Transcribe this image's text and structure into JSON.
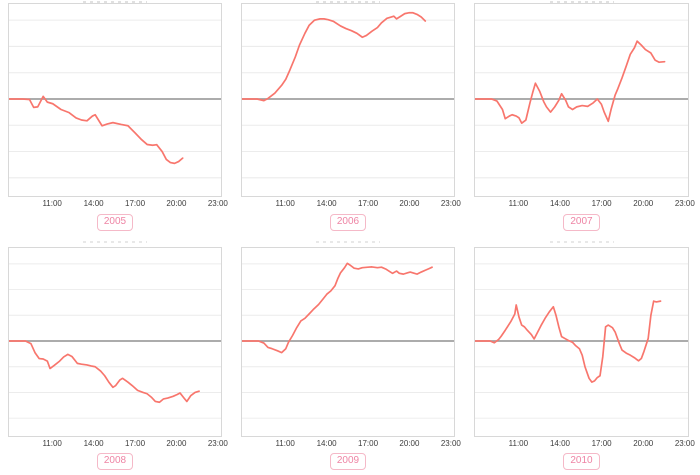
{
  "style": {
    "line_color": "#f8766d",
    "zero_line_color": "#a0a0a0",
    "grid_color": "#ececec",
    "panel_border_color": "#d8d8d8",
    "tick_text_color": "#3d3d3d",
    "badge_text_color": "#ee84a4",
    "badge_border_color": "#f5b9c8"
  },
  "axis": {
    "tick_labels": [
      "11:00",
      "14:00",
      "17:00",
      "20:00",
      "23:00"
    ],
    "tick_times": [
      11,
      14,
      17,
      20,
      23
    ],
    "t_min": 7.8,
    "t_max": 23.3
  },
  "chart_data": [
    {
      "type": "line",
      "year": "2005",
      "x_unit": "time of day",
      "x_ticks": [
        "11:00",
        "14:00",
        "17:00",
        "20:00",
        "23:00"
      ],
      "x_range": [
        7.8,
        23.3
      ],
      "ylim": [
        -3.65,
        3.7
      ],
      "y_gridline_spacing": 1,
      "zero_baseline": true,
      "grid": true,
      "legend": "none",
      "points": [
        [
          7.8,
          0
        ],
        [
          8.8,
          0
        ],
        [
          9.3,
          -0.02
        ],
        [
          9.6,
          -0.32
        ],
        [
          9.9,
          -0.3
        ],
        [
          10.3,
          0.1
        ],
        [
          10.6,
          -0.12
        ],
        [
          11,
          -0.18
        ],
        [
          11.6,
          -0.4
        ],
        [
          12.2,
          -0.52
        ],
        [
          12.7,
          -0.72
        ],
        [
          13.1,
          -0.8
        ],
        [
          13.5,
          -0.83
        ],
        [
          13.9,
          -0.65
        ],
        [
          14.1,
          -0.6
        ],
        [
          14.6,
          -1.02
        ],
        [
          15,
          -0.95
        ],
        [
          15.4,
          -0.9
        ],
        [
          16,
          -0.97
        ],
        [
          16.5,
          -1.02
        ],
        [
          17,
          -1.28
        ],
        [
          17.5,
          -1.55
        ],
        [
          17.9,
          -1.73
        ],
        [
          18.3,
          -1.76
        ],
        [
          18.6,
          -1.74
        ],
        [
          19,
          -2
        ],
        [
          19.3,
          -2.3
        ],
        [
          19.6,
          -2.42
        ],
        [
          19.9,
          -2.45
        ],
        [
          20.2,
          -2.38
        ],
        [
          20.5,
          -2.25
        ]
      ]
    },
    {
      "type": "line",
      "year": "2006",
      "x_unit": "time of day",
      "x_ticks": [
        "11:00",
        "14:00",
        "17:00",
        "20:00",
        "23:00"
      ],
      "x_range": [
        7.8,
        23.3
      ],
      "ylim": [
        -3.65,
        3.7
      ],
      "y_gridline_spacing": 1,
      "zero_baseline": true,
      "grid": true,
      "legend": "none",
      "points": [
        [
          7.8,
          0
        ],
        [
          8.9,
          0
        ],
        [
          9.4,
          -0.06
        ],
        [
          9.7,
          0.02
        ],
        [
          10.2,
          0.22
        ],
        [
          10.7,
          0.52
        ],
        [
          11,
          0.75
        ],
        [
          11.3,
          1.1
        ],
        [
          11.7,
          1.6
        ],
        [
          12,
          2.05
        ],
        [
          12.4,
          2.5
        ],
        [
          12.7,
          2.8
        ],
        [
          13.1,
          3
        ],
        [
          13.5,
          3.05
        ],
        [
          13.8,
          3.05
        ],
        [
          14.1,
          3.02
        ],
        [
          14.5,
          2.95
        ],
        [
          15,
          2.78
        ],
        [
          15.4,
          2.68
        ],
        [
          15.8,
          2.6
        ],
        [
          16.2,
          2.5
        ],
        [
          16.6,
          2.35
        ],
        [
          16.9,
          2.42
        ],
        [
          17.3,
          2.58
        ],
        [
          17.7,
          2.72
        ],
        [
          18,
          2.9
        ],
        [
          18.4,
          3.07
        ],
        [
          18.7,
          3.12
        ],
        [
          18.9,
          3.15
        ],
        [
          19.1,
          3.05
        ],
        [
          19.4,
          3.15
        ],
        [
          19.7,
          3.25
        ],
        [
          20,
          3.28
        ],
        [
          20.3,
          3.28
        ],
        [
          20.6,
          3.22
        ],
        [
          20.9,
          3.12
        ],
        [
          21.2,
          2.97
        ]
      ]
    },
    {
      "type": "line",
      "year": "2007",
      "x_unit": "time of day",
      "x_ticks": [
        "11:00",
        "14:00",
        "17:00",
        "20:00",
        "23:00"
      ],
      "x_range": [
        7.8,
        23.3
      ],
      "ylim": [
        -3.65,
        3.7
      ],
      "y_gridline_spacing": 1,
      "zero_baseline": true,
      "grid": true,
      "legend": "none",
      "points": [
        [
          7.8,
          0
        ],
        [
          9,
          0
        ],
        [
          9.4,
          -0.08
        ],
        [
          9.8,
          -0.4
        ],
        [
          10,
          -0.75
        ],
        [
          10.3,
          -0.65
        ],
        [
          10.5,
          -0.6
        ],
        [
          10.8,
          -0.65
        ],
        [
          11,
          -0.72
        ],
        [
          11.2,
          -0.92
        ],
        [
          11.5,
          -0.8
        ],
        [
          11.8,
          -0.15
        ],
        [
          12,
          0.25
        ],
        [
          12.2,
          0.6
        ],
        [
          12.5,
          0.3
        ],
        [
          12.8,
          -0.1
        ],
        [
          13,
          -0.3
        ],
        [
          13.3,
          -0.5
        ],
        [
          13.6,
          -0.3
        ],
        [
          13.9,
          -0.05
        ],
        [
          14.1,
          0.2
        ],
        [
          14.4,
          -0.05
        ],
        [
          14.6,
          -0.3
        ],
        [
          14.9,
          -0.4
        ],
        [
          15.2,
          -0.3
        ],
        [
          15.6,
          -0.25
        ],
        [
          16,
          -0.28
        ],
        [
          16.4,
          -0.15
        ],
        [
          16.7,
          0
        ],
        [
          17,
          -0.2
        ],
        [
          17.2,
          -0.5
        ],
        [
          17.5,
          -0.85
        ],
        [
          17.7,
          -0.4
        ],
        [
          18,
          0.15
        ],
        [
          18.2,
          0.4
        ],
        [
          18.5,
          0.8
        ],
        [
          18.8,
          1.25
        ],
        [
          19.1,
          1.7
        ],
        [
          19.4,
          1.95
        ],
        [
          19.6,
          2.2
        ],
        [
          19.9,
          2.05
        ],
        [
          20.2,
          1.88
        ],
        [
          20.6,
          1.75
        ],
        [
          20.9,
          1.48
        ],
        [
          21.2,
          1.4
        ],
        [
          21.6,
          1.42
        ]
      ]
    },
    {
      "type": "line",
      "year": "2008",
      "x_unit": "time of day",
      "x_ticks": [
        "11:00",
        "14:00",
        "17:00",
        "20:00",
        "23:00"
      ],
      "x_range": [
        7.8,
        23.3
      ],
      "ylim": [
        -3.65,
        3.7
      ],
      "y_gridline_spacing": 1,
      "zero_baseline": true,
      "grid": true,
      "legend": "none",
      "points": [
        [
          7.8,
          0
        ],
        [
          9,
          0
        ],
        [
          9.4,
          -0.1
        ],
        [
          9.7,
          -0.45
        ],
        [
          10,
          -0.68
        ],
        [
          10.3,
          -0.7
        ],
        [
          10.6,
          -0.78
        ],
        [
          10.8,
          -1.07
        ],
        [
          11.1,
          -0.95
        ],
        [
          11.5,
          -0.78
        ],
        [
          11.8,
          -0.62
        ],
        [
          12.1,
          -0.52
        ],
        [
          12.4,
          -0.6
        ],
        [
          12.8,
          -0.87
        ],
        [
          13.1,
          -0.9
        ],
        [
          13.5,
          -0.93
        ],
        [
          13.8,
          -0.97
        ],
        [
          14.1,
          -1
        ],
        [
          14.5,
          -1.17
        ],
        [
          14.8,
          -1.35
        ],
        [
          15.1,
          -1.6
        ],
        [
          15.4,
          -1.8
        ],
        [
          15.6,
          -1.73
        ],
        [
          15.9,
          -1.52
        ],
        [
          16.1,
          -1.45
        ],
        [
          16.5,
          -1.6
        ],
        [
          16.8,
          -1.73
        ],
        [
          17.2,
          -1.92
        ],
        [
          17.6,
          -2
        ],
        [
          17.9,
          -2.05
        ],
        [
          18.2,
          -2.18
        ],
        [
          18.5,
          -2.35
        ],
        [
          18.8,
          -2.38
        ],
        [
          19.1,
          -2.25
        ],
        [
          19.4,
          -2.22
        ],
        [
          19.8,
          -2.15
        ],
        [
          20.1,
          -2.08
        ],
        [
          20.3,
          -2.02
        ],
        [
          20.6,
          -2.22
        ],
        [
          20.8,
          -2.35
        ],
        [
          21.1,
          -2.12
        ],
        [
          21.4,
          -2
        ],
        [
          21.7,
          -1.95
        ]
      ]
    },
    {
      "type": "line",
      "year": "2009",
      "x_unit": "time of day",
      "x_ticks": [
        "11:00",
        "14:00",
        "17:00",
        "20:00",
        "23:00"
      ],
      "x_range": [
        7.8,
        23.3
      ],
      "ylim": [
        -3.65,
        3.7
      ],
      "y_gridline_spacing": 1,
      "zero_baseline": true,
      "grid": true,
      "legend": "none",
      "points": [
        [
          7.8,
          0
        ],
        [
          9,
          0
        ],
        [
          9.4,
          -0.08
        ],
        [
          9.7,
          -0.25
        ],
        [
          10,
          -0.3
        ],
        [
          10.4,
          -0.38
        ],
        [
          10.7,
          -0.45
        ],
        [
          11,
          -0.3
        ],
        [
          11.2,
          -0.05
        ],
        [
          11.5,
          0.22
        ],
        [
          11.8,
          0.52
        ],
        [
          12.1,
          0.78
        ],
        [
          12.4,
          0.88
        ],
        [
          12.7,
          1.05
        ],
        [
          13,
          1.22
        ],
        [
          13.4,
          1.42
        ],
        [
          13.7,
          1.62
        ],
        [
          14,
          1.82
        ],
        [
          14.3,
          1.95
        ],
        [
          14.6,
          2.15
        ],
        [
          14.8,
          2.42
        ],
        [
          15,
          2.65
        ],
        [
          15.3,
          2.85
        ],
        [
          15.5,
          3.02
        ],
        [
          15.7,
          2.95
        ],
        [
          16,
          2.83
        ],
        [
          16.3,
          2.8
        ],
        [
          16.6,
          2.85
        ],
        [
          17,
          2.87
        ],
        [
          17.3,
          2.88
        ],
        [
          17.7,
          2.85
        ],
        [
          18,
          2.87
        ],
        [
          18.3,
          2.8
        ],
        [
          18.6,
          2.7
        ],
        [
          18.8,
          2.63
        ],
        [
          19.1,
          2.72
        ],
        [
          19.3,
          2.63
        ],
        [
          19.6,
          2.6
        ],
        [
          19.9,
          2.65
        ],
        [
          20.1,
          2.68
        ],
        [
          20.4,
          2.63
        ],
        [
          20.6,
          2.6
        ],
        [
          20.9,
          2.68
        ],
        [
          21.2,
          2.75
        ],
        [
          21.5,
          2.82
        ],
        [
          21.7,
          2.87
        ]
      ]
    },
    {
      "type": "line",
      "year": "2010",
      "x_unit": "time of day",
      "x_ticks": [
        "11:00",
        "14:00",
        "17:00",
        "20:00",
        "23:00"
      ],
      "x_range": [
        7.8,
        23.3
      ],
      "ylim": [
        -3.65,
        3.7
      ],
      "y_gridline_spacing": 1,
      "zero_baseline": true,
      "grid": true,
      "legend": "none",
      "points": [
        [
          7.8,
          0
        ],
        [
          8.9,
          0
        ],
        [
          9.2,
          -0.07
        ],
        [
          9.5,
          0.05
        ],
        [
          9.7,
          0.18
        ],
        [
          10,
          0.42
        ],
        [
          10.4,
          0.75
        ],
        [
          10.7,
          1.05
        ],
        [
          10.8,
          1.4
        ],
        [
          11,
          0.93
        ],
        [
          11.2,
          0.62
        ],
        [
          11.4,
          0.55
        ],
        [
          11.6,
          0.42
        ],
        [
          11.9,
          0.25
        ],
        [
          12.1,
          0.08
        ],
        [
          12.3,
          0.28
        ],
        [
          12.6,
          0.6
        ],
        [
          12.9,
          0.88
        ],
        [
          13.2,
          1.13
        ],
        [
          13.5,
          1.33
        ],
        [
          13.7,
          0.98
        ],
        [
          13.9,
          0.55
        ],
        [
          14.1,
          0.17
        ],
        [
          14.4,
          0.08
        ],
        [
          14.6,
          0.02
        ],
        [
          14.9,
          -0.05
        ],
        [
          15.1,
          -0.17
        ],
        [
          15.4,
          -0.3
        ],
        [
          15.6,
          -0.55
        ],
        [
          15.8,
          -1
        ],
        [
          16.1,
          -1.45
        ],
        [
          16.3,
          -1.6
        ],
        [
          16.5,
          -1.55
        ],
        [
          16.7,
          -1.42
        ],
        [
          16.9,
          -1.35
        ],
        [
          17.1,
          -0.6
        ],
        [
          17.3,
          0.55
        ],
        [
          17.5,
          0.62
        ],
        [
          17.8,
          0.52
        ],
        [
          18,
          0.35
        ],
        [
          18.3,
          -0.1
        ],
        [
          18.5,
          -0.35
        ],
        [
          18.8,
          -0.47
        ],
        [
          19.1,
          -0.55
        ],
        [
          19.4,
          -0.65
        ],
        [
          19.7,
          -0.77
        ],
        [
          19.9,
          -0.68
        ],
        [
          20.1,
          -0.4
        ],
        [
          20.4,
          0.1
        ],
        [
          20.6,
          1
        ],
        [
          20.8,
          1.55
        ],
        [
          21,
          1.52
        ],
        [
          21.3,
          1.55
        ]
      ]
    }
  ]
}
